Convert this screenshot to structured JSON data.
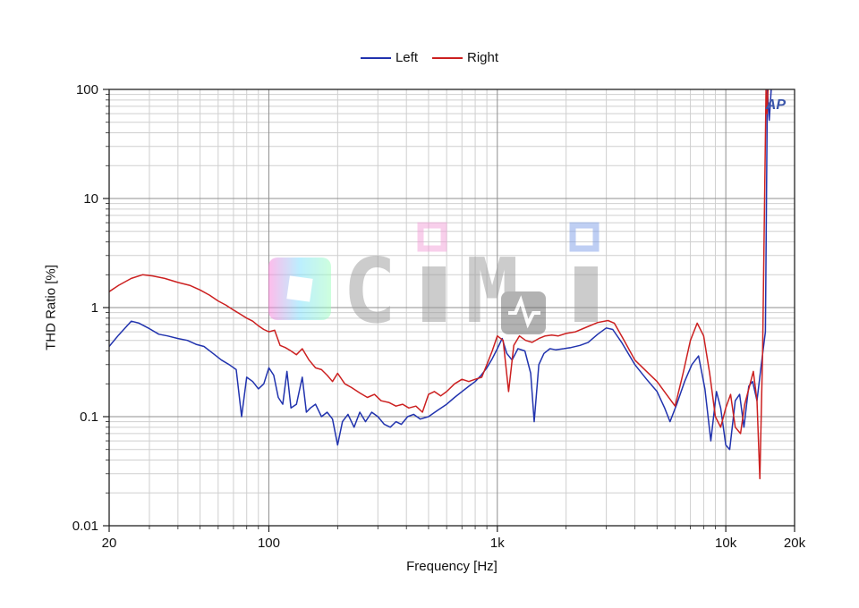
{
  "legend": {
    "items": [
      {
        "label": "Left",
        "color": "#2133ae"
      },
      {
        "label": "Right",
        "color": "#cc2020"
      }
    ]
  },
  "ap_logo": {
    "text": "AP",
    "color": "#3a55aa"
  },
  "watermark": {
    "text": "CiMi",
    "letter_color": "#9a9a9a",
    "accent_pink": "#f2a0d8",
    "accent_blue": "#7f9fe8",
    "pulse_block_color": "#686868",
    "gradient_colors": [
      "#ff7ad9",
      "#7ae0ff",
      "#9dffbe"
    ],
    "opacity": 0.5
  },
  "chart_data": {
    "type": "line",
    "title": "",
    "xlabel": "Frequency [Hz]",
    "ylabel": "THD Ratio [%]",
    "xscale": "log",
    "yscale": "log",
    "xlim": [
      20,
      20000
    ],
    "ylim": [
      0.01,
      100
    ],
    "grid": true,
    "legend_position": "top-center",
    "xticks": [
      {
        "value": 20,
        "label": "20"
      },
      {
        "value": 100,
        "label": "100"
      },
      {
        "value": 1000,
        "label": "1k"
      },
      {
        "value": 10000,
        "label": "10k"
      },
      {
        "value": 20000,
        "label": "20k"
      }
    ],
    "yticks": [
      {
        "value": 100,
        "label": "100"
      },
      {
        "value": 10,
        "label": "10"
      },
      {
        "value": 1,
        "label": "1"
      },
      {
        "value": 0.1,
        "label": "0.1"
      },
      {
        "value": 0.01,
        "label": "0.01"
      }
    ],
    "series": [
      {
        "name": "Left",
        "color": "#2133ae",
        "points": [
          [
            20,
            0.44
          ],
          [
            22,
            0.56
          ],
          [
            25,
            0.75
          ],
          [
            27,
            0.72
          ],
          [
            30,
            0.64
          ],
          [
            33,
            0.57
          ],
          [
            36,
            0.55
          ],
          [
            40,
            0.52
          ],
          [
            44,
            0.5
          ],
          [
            48,
            0.46
          ],
          [
            52,
            0.44
          ],
          [
            57,
            0.38
          ],
          [
            62,
            0.33
          ],
          [
            67,
            0.3
          ],
          [
            72,
            0.27
          ],
          [
            76,
            0.1
          ],
          [
            80,
            0.23
          ],
          [
            85,
            0.21
          ],
          [
            90,
            0.18
          ],
          [
            95,
            0.2
          ],
          [
            100,
            0.28
          ],
          [
            105,
            0.24
          ],
          [
            110,
            0.15
          ],
          [
            115,
            0.13
          ],
          [
            120,
            0.26
          ],
          [
            125,
            0.12
          ],
          [
            132,
            0.13
          ],
          [
            140,
            0.23
          ],
          [
            146,
            0.11
          ],
          [
            152,
            0.12
          ],
          [
            160,
            0.13
          ],
          [
            170,
            0.1
          ],
          [
            180,
            0.11
          ],
          [
            190,
            0.095
          ],
          [
            200,
            0.055
          ],
          [
            210,
            0.09
          ],
          [
            222,
            0.105
          ],
          [
            236,
            0.08
          ],
          [
            250,
            0.11
          ],
          [
            265,
            0.09
          ],
          [
            282,
            0.11
          ],
          [
            300,
            0.1
          ],
          [
            320,
            0.085
          ],
          [
            340,
            0.08
          ],
          [
            360,
            0.09
          ],
          [
            380,
            0.085
          ],
          [
            405,
            0.1
          ],
          [
            430,
            0.105
          ],
          [
            460,
            0.095
          ],
          [
            500,
            0.1
          ],
          [
            550,
            0.115
          ],
          [
            600,
            0.13
          ],
          [
            650,
            0.15
          ],
          [
            700,
            0.17
          ],
          [
            750,
            0.19
          ],
          [
            800,
            0.21
          ],
          [
            850,
            0.24
          ],
          [
            900,
            0.28
          ],
          [
            950,
            0.34
          ],
          [
            1000,
            0.42
          ],
          [
            1050,
            0.52
          ],
          [
            1100,
            0.38
          ],
          [
            1160,
            0.33
          ],
          [
            1230,
            0.42
          ],
          [
            1320,
            0.4
          ],
          [
            1400,
            0.25
          ],
          [
            1450,
            0.09
          ],
          [
            1520,
            0.3
          ],
          [
            1600,
            0.38
          ],
          [
            1700,
            0.42
          ],
          [
            1800,
            0.41
          ],
          [
            1950,
            0.42
          ],
          [
            2100,
            0.43
          ],
          [
            2300,
            0.45
          ],
          [
            2500,
            0.48
          ],
          [
            2750,
            0.57
          ],
          [
            3000,
            0.65
          ],
          [
            3200,
            0.63
          ],
          [
            3500,
            0.48
          ],
          [
            4000,
            0.3
          ],
          [
            4500,
            0.22
          ],
          [
            5000,
            0.17
          ],
          [
            5400,
            0.12
          ],
          [
            5700,
            0.09
          ],
          [
            6100,
            0.13
          ],
          [
            6600,
            0.21
          ],
          [
            7100,
            0.3
          ],
          [
            7600,
            0.36
          ],
          [
            8100,
            0.18
          ],
          [
            8600,
            0.06
          ],
          [
            9100,
            0.17
          ],
          [
            9500,
            0.12
          ],
          [
            10000,
            0.055
          ],
          [
            10400,
            0.05
          ],
          [
            11000,
            0.14
          ],
          [
            11500,
            0.16
          ],
          [
            12000,
            0.08
          ],
          [
            12600,
            0.19
          ],
          [
            13100,
            0.21
          ],
          [
            13700,
            0.14
          ],
          [
            14300,
            0.3
          ],
          [
            14900,
            0.6
          ],
          [
            15200,
            100
          ],
          [
            15500,
            52
          ],
          [
            15800,
            100
          ]
        ]
      },
      {
        "name": "Right",
        "color": "#cc2020",
        "points": [
          [
            20,
            1.4
          ],
          [
            22,
            1.6
          ],
          [
            25,
            1.85
          ],
          [
            28,
            2.0
          ],
          [
            31,
            1.95
          ],
          [
            35,
            1.85
          ],
          [
            40,
            1.7
          ],
          [
            45,
            1.6
          ],
          [
            50,
            1.45
          ],
          [
            55,
            1.3
          ],
          [
            60,
            1.15
          ],
          [
            65,
            1.05
          ],
          [
            70,
            0.95
          ],
          [
            75,
            0.87
          ],
          [
            80,
            0.8
          ],
          [
            85,
            0.75
          ],
          [
            90,
            0.68
          ],
          [
            95,
            0.63
          ],
          [
            100,
            0.6
          ],
          [
            106,
            0.62
          ],
          [
            112,
            0.45
          ],
          [
            118,
            0.43
          ],
          [
            125,
            0.4
          ],
          [
            132,
            0.37
          ],
          [
            140,
            0.42
          ],
          [
            150,
            0.33
          ],
          [
            160,
            0.28
          ],
          [
            170,
            0.27
          ],
          [
            180,
            0.24
          ],
          [
            190,
            0.21
          ],
          [
            200,
            0.25
          ],
          [
            215,
            0.2
          ],
          [
            230,
            0.185
          ],
          [
            250,
            0.165
          ],
          [
            270,
            0.15
          ],
          [
            290,
            0.16
          ],
          [
            310,
            0.14
          ],
          [
            335,
            0.135
          ],
          [
            360,
            0.125
          ],
          [
            385,
            0.13
          ],
          [
            410,
            0.12
          ],
          [
            440,
            0.125
          ],
          [
            470,
            0.11
          ],
          [
            500,
            0.16
          ],
          [
            530,
            0.17
          ],
          [
            565,
            0.155
          ],
          [
            600,
            0.17
          ],
          [
            650,
            0.2
          ],
          [
            700,
            0.22
          ],
          [
            750,
            0.21
          ],
          [
            800,
            0.22
          ],
          [
            855,
            0.23
          ],
          [
            900,
            0.3
          ],
          [
            950,
            0.4
          ],
          [
            1000,
            0.55
          ],
          [
            1060,
            0.5
          ],
          [
            1120,
            0.17
          ],
          [
            1180,
            0.45
          ],
          [
            1250,
            0.55
          ],
          [
            1330,
            0.5
          ],
          [
            1420,
            0.48
          ],
          [
            1520,
            0.52
          ],
          [
            1620,
            0.55
          ],
          [
            1730,
            0.56
          ],
          [
            1850,
            0.55
          ],
          [
            2000,
            0.58
          ],
          [
            2200,
            0.6
          ],
          [
            2450,
            0.66
          ],
          [
            2750,
            0.73
          ],
          [
            3050,
            0.76
          ],
          [
            3250,
            0.72
          ],
          [
            3550,
            0.52
          ],
          [
            4000,
            0.33
          ],
          [
            4500,
            0.26
          ],
          [
            5000,
            0.21
          ],
          [
            5500,
            0.16
          ],
          [
            6000,
            0.125
          ],
          [
            6500,
            0.25
          ],
          [
            7000,
            0.5
          ],
          [
            7500,
            0.72
          ],
          [
            8000,
            0.55
          ],
          [
            8500,
            0.25
          ],
          [
            9000,
            0.1
          ],
          [
            9500,
            0.08
          ],
          [
            10000,
            0.12
          ],
          [
            10500,
            0.16
          ],
          [
            11000,
            0.08
          ],
          [
            11600,
            0.07
          ],
          [
            12100,
            0.13
          ],
          [
            12700,
            0.19
          ],
          [
            13200,
            0.26
          ],
          [
            13700,
            0.14
          ],
          [
            14100,
            0.027
          ],
          [
            14500,
            0.4
          ],
          [
            15000,
            100
          ],
          [
            15150,
            60
          ],
          [
            15300,
            100
          ]
        ]
      }
    ]
  }
}
